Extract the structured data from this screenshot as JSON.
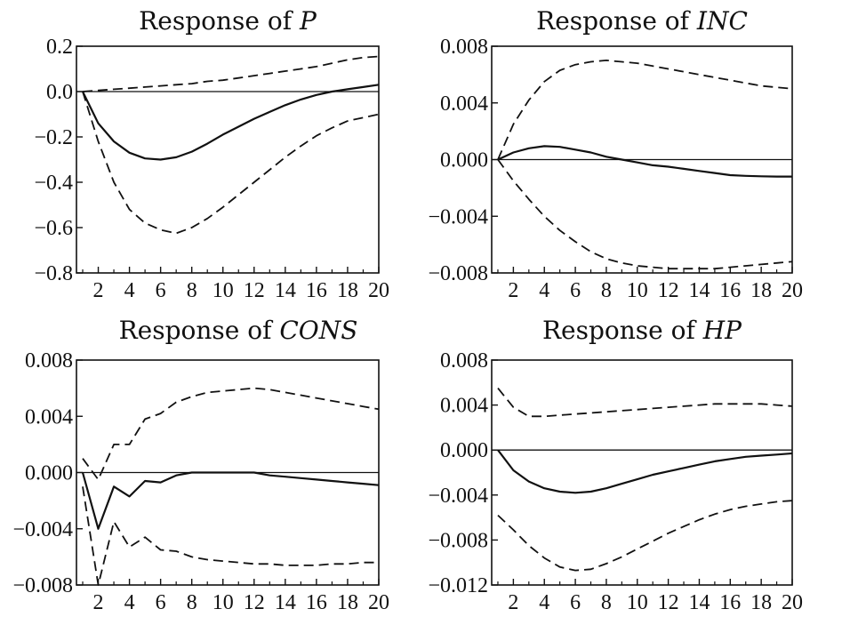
{
  "chart_data": [
    {
      "type": "line",
      "title_prefix": "Response of ",
      "title_var": "P",
      "x": [
        1,
        2,
        3,
        4,
        5,
        6,
        7,
        8,
        9,
        10,
        11,
        12,
        13,
        14,
        15,
        16,
        17,
        18,
        19,
        20
      ],
      "xticks": [
        2,
        4,
        6,
        8,
        10,
        12,
        14,
        16,
        18,
        20
      ],
      "xlim": [
        0.6,
        20
      ],
      "ylim": [
        -0.8,
        0.2
      ],
      "yticks": [
        0.2,
        0.0,
        -0.2,
        -0.4,
        -0.6,
        -0.8
      ],
      "ytick_labels": [
        "0.2",
        "0.0",
        "−0.2",
        "−0.4",
        "−0.6",
        "−0.8"
      ],
      "zero_line": true,
      "series": [
        {
          "style": "solid",
          "values": [
            0.0,
            -0.14,
            -0.22,
            -0.27,
            -0.295,
            -0.3,
            -0.29,
            -0.265,
            -0.23,
            -0.19,
            -0.155,
            -0.12,
            -0.09,
            -0.06,
            -0.035,
            -0.015,
            0.0,
            0.01,
            0.02,
            0.03
          ]
        },
        {
          "style": "dashed",
          "values": [
            0.0,
            0.005,
            0.01,
            0.015,
            0.02,
            0.025,
            0.03,
            0.035,
            0.045,
            0.05,
            0.06,
            0.07,
            0.08,
            0.09,
            0.1,
            0.11,
            0.125,
            0.14,
            0.15,
            0.155
          ]
        },
        {
          "style": "dashed",
          "values": [
            0.0,
            -0.22,
            -0.4,
            -0.52,
            -0.58,
            -0.61,
            -0.625,
            -0.6,
            -0.56,
            -0.51,
            -0.455,
            -0.4,
            -0.345,
            -0.29,
            -0.24,
            -0.195,
            -0.16,
            -0.13,
            -0.115,
            -0.1
          ]
        }
      ]
    },
    {
      "type": "line",
      "title_prefix": "Response of ",
      "title_var": "INC",
      "x": [
        1,
        2,
        3,
        4,
        5,
        6,
        7,
        8,
        9,
        10,
        11,
        12,
        13,
        14,
        15,
        16,
        17,
        18,
        19,
        20
      ],
      "xticks": [
        2,
        4,
        6,
        8,
        10,
        12,
        14,
        16,
        18,
        20
      ],
      "xlim": [
        0.6,
        20
      ],
      "ylim": [
        -0.008,
        0.008
      ],
      "yticks": [
        0.008,
        0.004,
        0.0,
        -0.004,
        -0.008
      ],
      "ytick_labels": [
        "0.008",
        "0.004",
        "0.000",
        "−0.004",
        "−0.008"
      ],
      "zero_line": true,
      "series": [
        {
          "style": "solid",
          "values": [
            0.0,
            0.0005,
            0.0008,
            0.00095,
            0.0009,
            0.0007,
            0.0005,
            0.0002,
            0.0,
            -0.0002,
            -0.0004,
            -0.0005,
            -0.00065,
            -0.0008,
            -0.00095,
            -0.0011,
            -0.00115,
            -0.00118,
            -0.0012,
            -0.0012
          ]
        },
        {
          "style": "dashed",
          "values": [
            0.0,
            0.0025,
            0.0042,
            0.0055,
            0.0063,
            0.0067,
            0.0069,
            0.007,
            0.0069,
            0.0068,
            0.0066,
            0.0064,
            0.0062,
            0.006,
            0.0058,
            0.0056,
            0.0054,
            0.0052,
            0.0051,
            0.005
          ]
        },
        {
          "style": "dashed",
          "values": [
            0.0,
            -0.0015,
            -0.0028,
            -0.004,
            -0.005,
            -0.0058,
            -0.0065,
            -0.007,
            -0.0073,
            -0.0075,
            -0.0076,
            -0.0077,
            -0.0077,
            -0.0077,
            -0.0077,
            -0.0076,
            -0.0075,
            -0.0074,
            -0.0073,
            -0.0072
          ]
        }
      ]
    },
    {
      "type": "line",
      "title_prefix": "Response of ",
      "title_var": "CONS",
      "x": [
        1,
        2,
        3,
        4,
        5,
        6,
        7,
        8,
        9,
        10,
        11,
        12,
        13,
        14,
        15,
        16,
        17,
        18,
        19,
        20
      ],
      "xticks": [
        2,
        4,
        6,
        8,
        10,
        12,
        14,
        16,
        18,
        20
      ],
      "xlim": [
        0.6,
        20
      ],
      "ylim": [
        -0.008,
        0.008
      ],
      "yticks": [
        0.008,
        0.004,
        0.0,
        -0.004,
        -0.008
      ],
      "ytick_labels": [
        "0.008",
        "0.004",
        "0.000",
        "−0.004",
        "−0.008"
      ],
      "zero_line": true,
      "series": [
        {
          "style": "solid",
          "values": [
            0.0,
            -0.004,
            -0.001,
            -0.0017,
            -0.0006,
            -0.0007,
            -0.0002,
            0.0,
            0.0,
            0.0,
            0.0,
            0.0,
            -0.0002,
            -0.0003,
            -0.0004,
            -0.0005,
            -0.0006,
            -0.0007,
            -0.0008,
            -0.0009
          ]
        },
        {
          "style": "dashed",
          "values": [
            0.001,
            -0.0005,
            0.002,
            0.002,
            0.0038,
            0.0042,
            0.005,
            0.0054,
            0.0057,
            0.0058,
            0.0059,
            0.006,
            0.0059,
            0.0057,
            0.0055,
            0.0053,
            0.0051,
            0.0049,
            0.0047,
            0.0045
          ]
        },
        {
          "style": "dashed",
          "values": [
            -0.001,
            -0.008,
            -0.0035,
            -0.0053,
            -0.0046,
            -0.0055,
            -0.0056,
            -0.006,
            -0.0062,
            -0.0063,
            -0.0064,
            -0.0065,
            -0.0065,
            -0.0066,
            -0.0066,
            -0.0066,
            -0.0065,
            -0.0065,
            -0.0064,
            -0.0064
          ]
        }
      ]
    },
    {
      "type": "line",
      "title_prefix": "Response of ",
      "title_var": "HP",
      "x": [
        1,
        2,
        3,
        4,
        5,
        6,
        7,
        8,
        9,
        10,
        11,
        12,
        13,
        14,
        15,
        16,
        17,
        18,
        19,
        20
      ],
      "xticks": [
        2,
        4,
        6,
        8,
        10,
        12,
        14,
        16,
        18,
        20
      ],
      "xlim": [
        0.6,
        20
      ],
      "ylim": [
        -0.012,
        0.008
      ],
      "yticks": [
        0.008,
        0.004,
        0.0,
        -0.004,
        -0.008,
        -0.012
      ],
      "ytick_labels": [
        "0.008",
        "0.004",
        "0.000",
        "−0.004",
        "−0.008",
        "−0.012"
      ],
      "zero_line": true,
      "series": [
        {
          "style": "solid",
          "values": [
            0.0,
            -0.0018,
            -0.0028,
            -0.0034,
            -0.0037,
            -0.0038,
            -0.0037,
            -0.0034,
            -0.003,
            -0.0026,
            -0.0022,
            -0.0019,
            -0.0016,
            -0.0013,
            -0.001,
            -0.0008,
            -0.0006,
            -0.0005,
            -0.0004,
            -0.0003
          ]
        },
        {
          "style": "dashed",
          "values": [
            0.0055,
            0.0038,
            0.003,
            0.003,
            0.0031,
            0.0032,
            0.0033,
            0.0034,
            0.0035,
            0.0036,
            0.0037,
            0.0038,
            0.0039,
            0.004,
            0.0041,
            0.0041,
            0.0041,
            0.0041,
            0.004,
            0.0039
          ]
        },
        {
          "style": "dashed",
          "values": [
            -0.0058,
            -0.0071,
            -0.0085,
            -0.0096,
            -0.0104,
            -0.0107,
            -0.0106,
            -0.0101,
            -0.0095,
            -0.0088,
            -0.0081,
            -0.0074,
            -0.0068,
            -0.0062,
            -0.0057,
            -0.0053,
            -0.005,
            -0.0048,
            -0.0046,
            -0.0045
          ]
        }
      ]
    }
  ]
}
